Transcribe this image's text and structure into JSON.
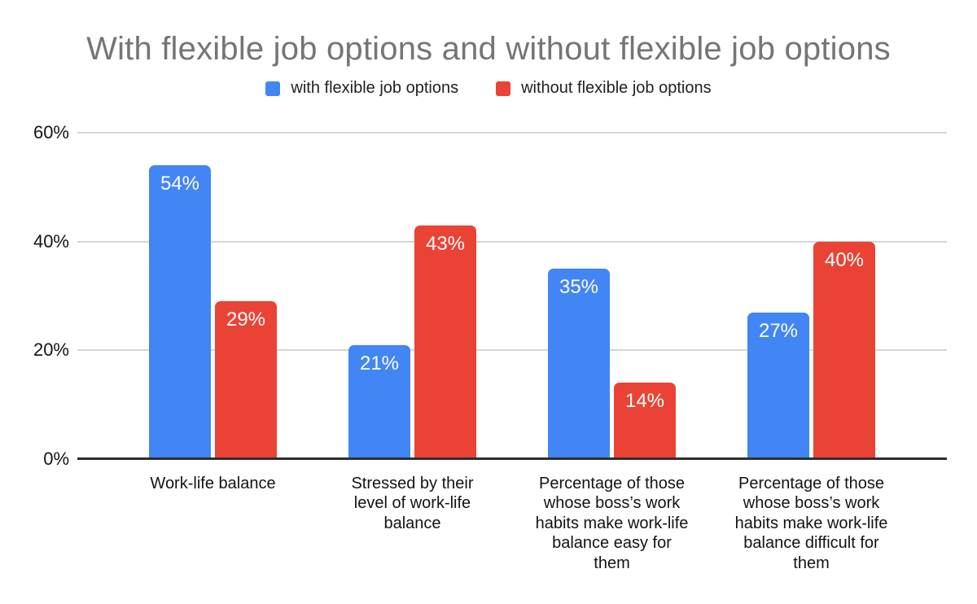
{
  "chart_data": {
    "type": "bar",
    "title": "With flexible job options and without flexible job options",
    "categories": [
      "Work-life balance",
      "Stressed by their\nlevel of work-life\nbalance",
      "Percentage of those\nwhose boss’s work\nhabits make work-life\nbalance easy for\nthem",
      "Percentage of those\nwhose boss’s work\nhabits make work-life\nbalance difficult for\nthem"
    ],
    "series": [
      {
        "name": "with flexible job options",
        "color": "#4285f4",
        "values": [
          54,
          21,
          35,
          27
        ]
      },
      {
        "name": "without flexible job options",
        "color": "#ea4335",
        "values": [
          29,
          43,
          14,
          40
        ]
      }
    ],
    "value_suffix": "%",
    "ylim": [
      0,
      60
    ],
    "yticks": [
      {
        "value": 0,
        "label": "0%"
      },
      {
        "value": 20,
        "label": "20%"
      },
      {
        "value": 40,
        "label": "40%"
      },
      {
        "value": 60,
        "label": "60%"
      }
    ],
    "grid": true,
    "legend_position": "top",
    "xlabel": "",
    "ylabel": "",
    "colors": {
      "title_text": "#757575",
      "legend_text": "#212121",
      "axis_tick_text": "#131313",
      "category_text": "#131313",
      "gridline": "#d6d6d6",
      "axis_line": "#2e2e2e",
      "bar_label_text": "#ffffff",
      "background": "#ffffff"
    }
  }
}
